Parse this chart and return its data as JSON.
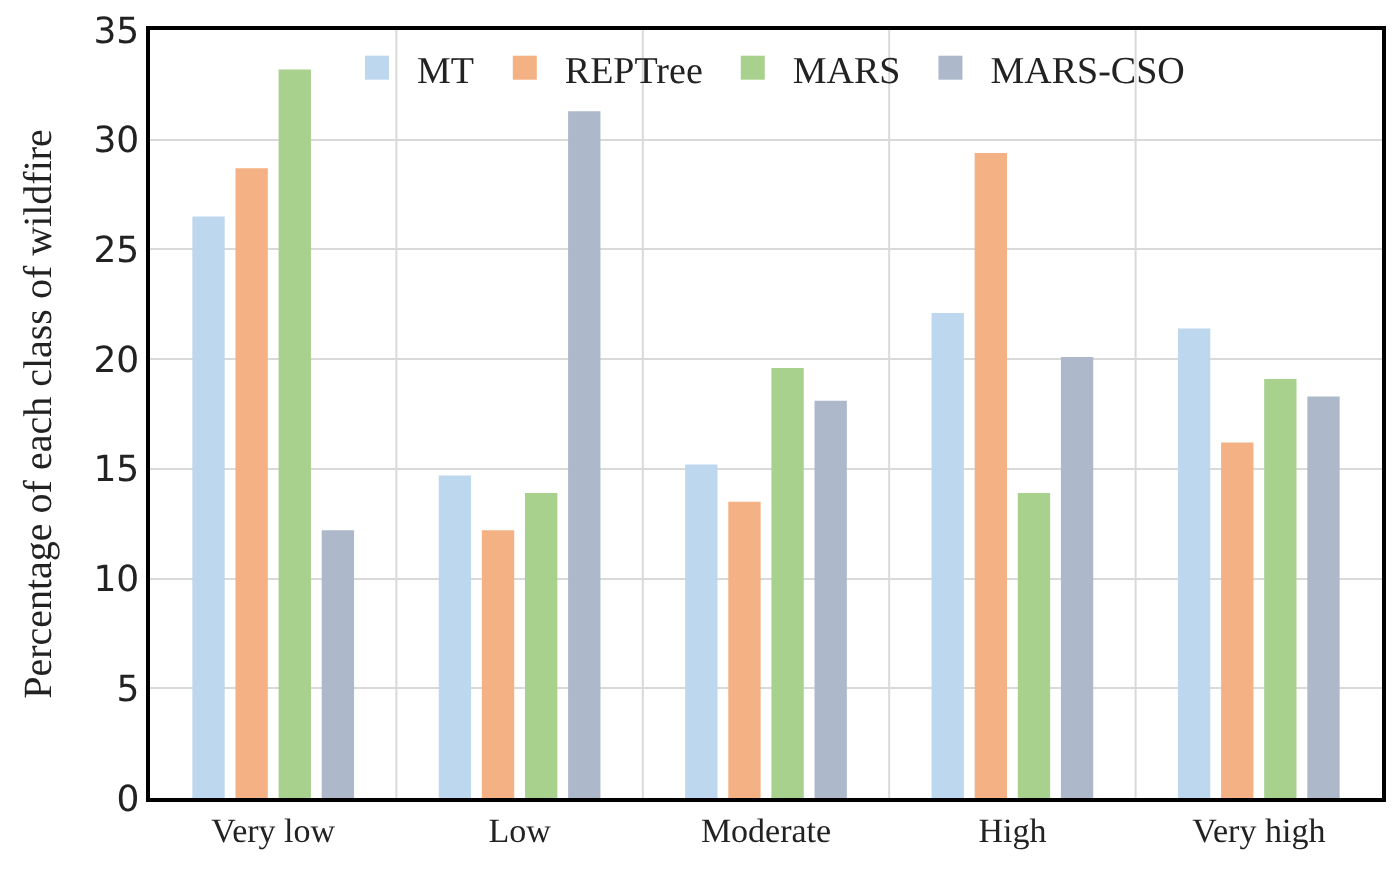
{
  "chart_data": {
    "type": "bar",
    "ylabel": "Percentage of each class of wildfire",
    "categories": [
      "Very low",
      "Low",
      "Moderate",
      "High",
      "Very high"
    ],
    "series": [
      {
        "name": "MT",
        "color": "#bdd7ee",
        "values": [
          26.5,
          14.7,
          15.2,
          22.1,
          21.4
        ]
      },
      {
        "name": "REPTree",
        "color": "#f4b183",
        "values": [
          28.7,
          12.2,
          13.5,
          29.4,
          16.2
        ]
      },
      {
        "name": "MARS",
        "color": "#a9d18e",
        "values": [
          33.2,
          13.9,
          19.6,
          13.9,
          19.1
        ]
      },
      {
        "name": "MARS-CSO",
        "color": "#adb9ca",
        "values": [
          12.2,
          31.3,
          18.1,
          20.1,
          18.3
        ]
      }
    ],
    "ylim": [
      0,
      35
    ],
    "yticks": [
      0,
      5,
      10,
      15,
      20,
      25,
      30,
      35
    ],
    "grid": true,
    "legend": "top"
  }
}
